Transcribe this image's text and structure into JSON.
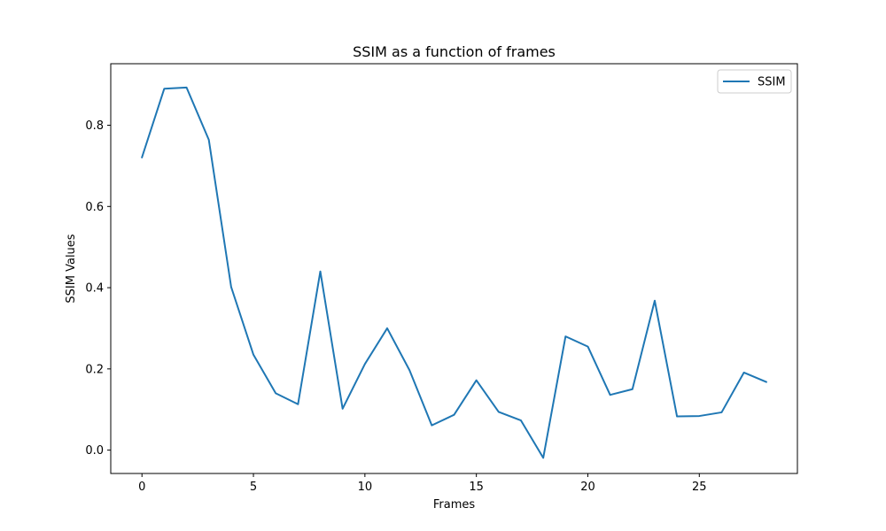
{
  "chart_data": {
    "type": "line",
    "title": "SSIM as a function of frames",
    "xlabel": "Frames",
    "ylabel": "SSIM Values",
    "xlim": [
      -1.4,
      29.4
    ],
    "ylim": [
      -0.0575,
      0.9515
    ],
    "xticks": [
      0,
      5,
      10,
      15,
      20,
      25
    ],
    "xtick_labels": [
      "0",
      "5",
      "10",
      "15",
      "20",
      "25"
    ],
    "yticks": [
      0.0,
      0.2,
      0.4,
      0.6,
      0.8
    ],
    "ytick_labels": [
      "0.0",
      "0.2",
      "0.4",
      "0.6",
      "0.8"
    ],
    "grid": false,
    "legend_position": "top-right",
    "series": [
      {
        "name": "SSIM",
        "color": "#1f77b4",
        "x": [
          0,
          1,
          2,
          3,
          4,
          5,
          6,
          7,
          8,
          9,
          10,
          11,
          12,
          13,
          14,
          15,
          16,
          17,
          18,
          19,
          20,
          21,
          22,
          23,
          24,
          25,
          26,
          27,
          28
        ],
        "y": [
          0.721,
          0.89,
          0.893,
          0.764,
          0.402,
          0.235,
          0.14,
          0.113,
          0.44,
          0.102,
          0.212,
          0.3,
          0.197,
          0.061,
          0.087,
          0.172,
          0.094,
          0.073,
          -0.019,
          0.28,
          0.255,
          0.136,
          0.15,
          0.368,
          0.083,
          0.084,
          0.093,
          0.191,
          0.168
        ]
      }
    ]
  }
}
